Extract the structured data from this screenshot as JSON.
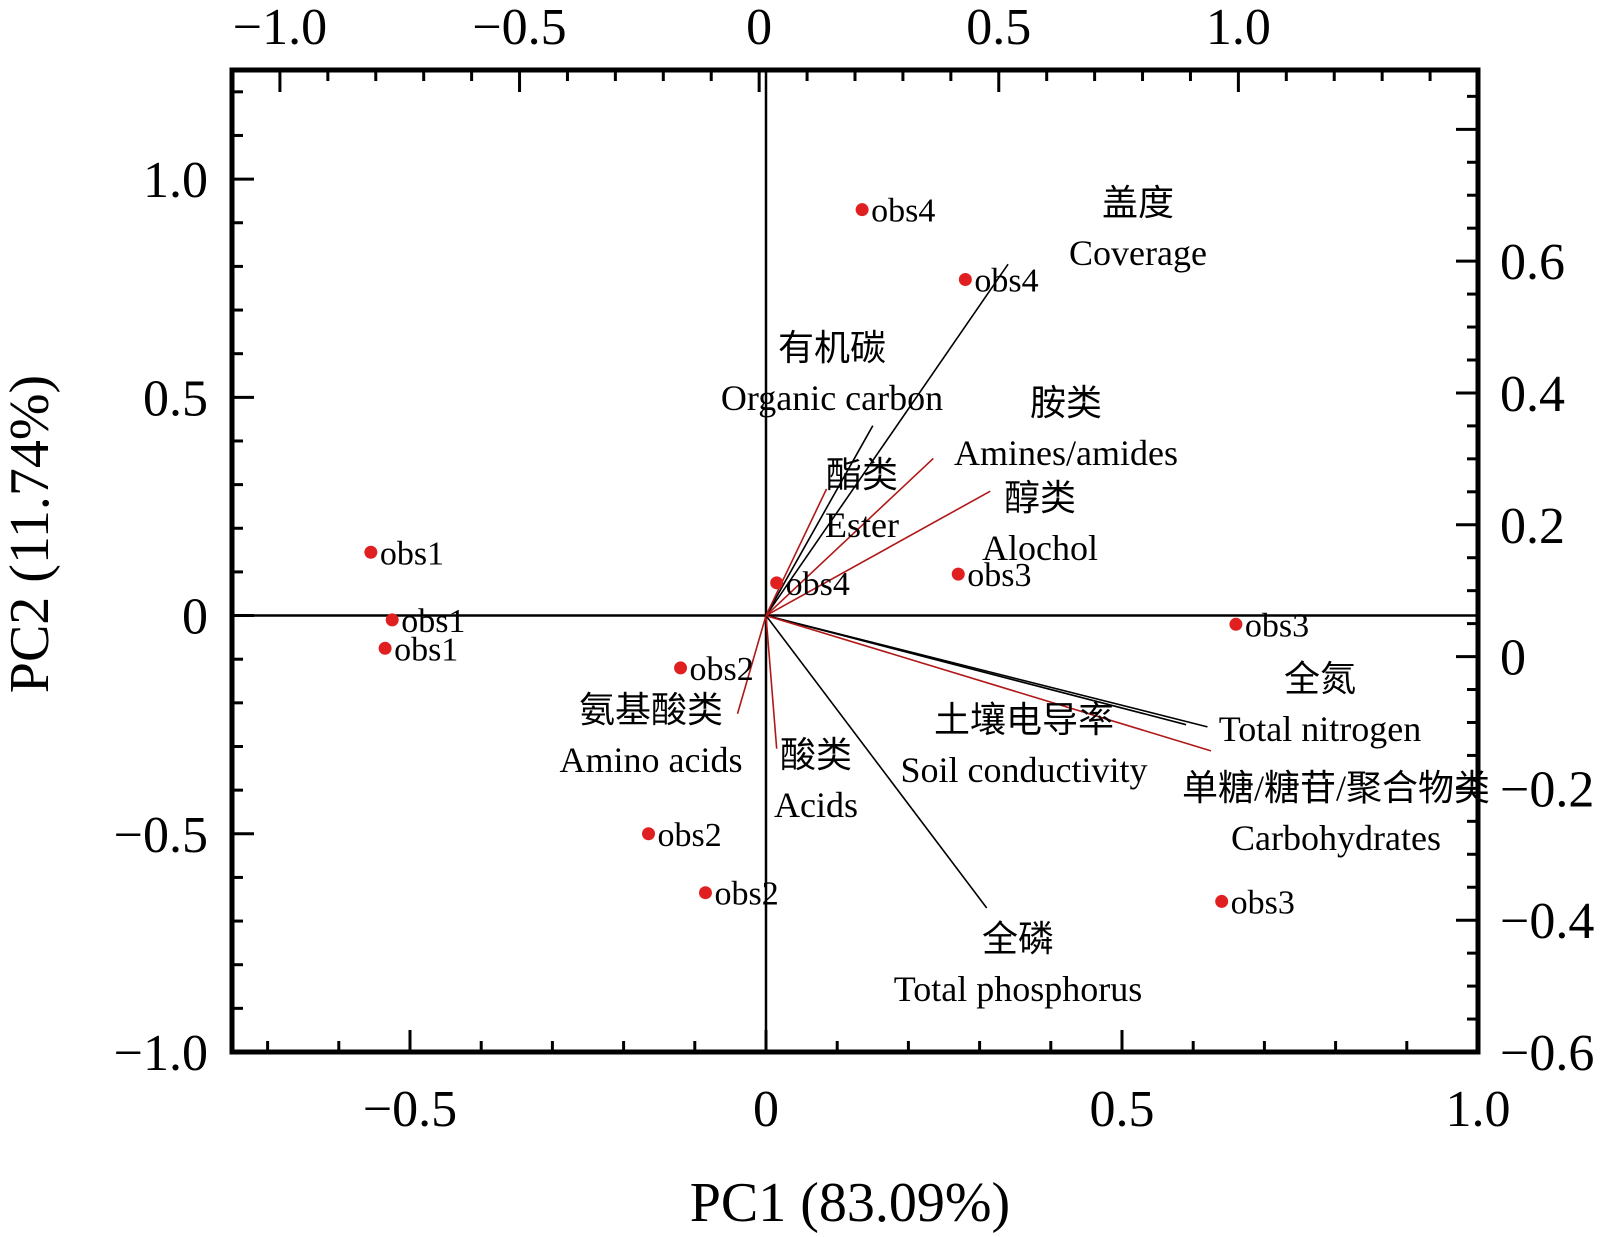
{
  "chart_data": {
    "type": "scatter",
    "subtype": "biplot",
    "xlabel": "PC1 (83.09%)",
    "ylabel": "PC2 (11.74%)",
    "xlim": [
      -0.75,
      1.0
    ],
    "ylim": [
      -1.0,
      1.25
    ],
    "top_xlim": [
      -1.1,
      1.5
    ],
    "right_ylim": [
      -0.6,
      0.89
    ],
    "x_ticks": [
      -0.5,
      0,
      0.5,
      1.0
    ],
    "x_tick_labels": [
      "−0.5",
      "0",
      "0.5",
      "1.0"
    ],
    "y_ticks": [
      -1.0,
      -0.5,
      0,
      0.5,
      1.0
    ],
    "y_tick_labels": [
      "−1.0",
      "−0.5",
      "0",
      "0.5",
      "1.0"
    ],
    "top_ticks": [
      -1.0,
      -0.5,
      0,
      0.5,
      1.0
    ],
    "top_tick_labels": [
      "−1.0",
      "−0.5",
      "0",
      "0.5",
      "1.0"
    ],
    "right_ticks": [
      -0.6,
      -0.4,
      -0.2,
      0,
      0.2,
      0.4,
      0.6
    ],
    "right_tick_labels": [
      "−0.6",
      "−0.4",
      "−0.2",
      "0",
      "0.2",
      "0.4",
      "0.6"
    ],
    "grid": false,
    "point_color": "#e02020",
    "red_vector_color": "#b01818",
    "black_vector_color": "#000000",
    "observations": [
      {
        "label": "obs1",
        "x": -0.555,
        "y": 0.145
      },
      {
        "label": "obs1",
        "x": -0.525,
        "y": -0.01
      },
      {
        "label": "obs1",
        "x": -0.535,
        "y": -0.075
      },
      {
        "label": "obs2",
        "x": -0.12,
        "y": -0.12
      },
      {
        "label": "obs2",
        "x": -0.165,
        "y": -0.5
      },
      {
        "label": "obs2",
        "x": -0.085,
        "y": -0.635
      },
      {
        "label": "obs3",
        "x": 0.27,
        "y": 0.095
      },
      {
        "label": "obs3",
        "x": 0.66,
        "y": -0.02
      },
      {
        "label": "obs3",
        "x": 0.64,
        "y": -0.655
      },
      {
        "label": "obs4",
        "x": 0.135,
        "y": 0.93
      },
      {
        "label": "obs4",
        "x": 0.28,
        "y": 0.77
      },
      {
        "label": "obs4",
        "x": 0.015,
        "y": 0.075
      }
    ],
    "variables": [
      {
        "name": "盖度",
        "name_en": "Coverage",
        "x": 0.34,
        "y": 0.805,
        "color": "black"
      },
      {
        "name": "有机碳",
        "name_en": "Organic carbon",
        "x": 0.15,
        "y": 0.435,
        "color": "black"
      },
      {
        "name": "酯类",
        "name_en": "Ester",
        "x": 0.085,
        "y": 0.29,
        "color": "red"
      },
      {
        "name": "胺类",
        "name_en": "Amines/amides",
        "x": 0.235,
        "y": 0.36,
        "color": "red"
      },
      {
        "name": "醇类",
        "name_en": "Alochol",
        "x": 0.315,
        "y": 0.285,
        "color": "red"
      },
      {
        "name": "氨基酸类",
        "name_en": "Amino acids",
        "x": -0.04,
        "y": -0.225,
        "color": "red"
      },
      {
        "name": "酸类",
        "name_en": "Acids",
        "x": 0.015,
        "y": -0.305,
        "color": "red"
      },
      {
        "name": "全磷",
        "name_en": "Total phosphorus",
        "x": 0.31,
        "y": -0.67,
        "color": "black"
      },
      {
        "name": "土壤电导率",
        "name_en": "Soil conductivity",
        "x": 0.59,
        "y": -0.25,
        "color": "black"
      },
      {
        "name": "全氮",
        "name_en": "Total nitrogen",
        "x": 0.62,
        "y": -0.255,
        "color": "black"
      },
      {
        "name": "单糖/糖苷/聚合物类",
        "name_en": "Carbohydrates",
        "x": 0.625,
        "y": -0.31,
        "color": "red"
      }
    ]
  }
}
